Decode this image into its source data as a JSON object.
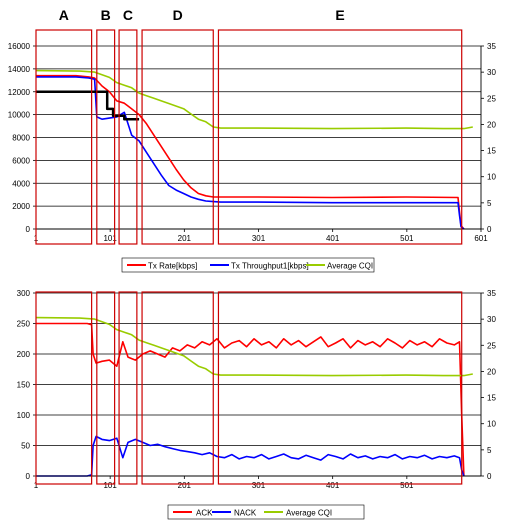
{
  "region_labels": [
    "A",
    "B",
    "C",
    "D",
    "E"
  ],
  "colors": {
    "red": "#ff0000",
    "blue": "#0000ff",
    "green": "#99cc00",
    "black": "#000000",
    "box": "#cc0000",
    "grid": "#000000"
  },
  "regions": [
    {
      "label": "A",
      "x": [
        1,
        76
      ]
    },
    {
      "label": "B",
      "x": [
        83,
        107
      ]
    },
    {
      "label": "C",
      "x": [
        113,
        137
      ]
    },
    {
      "label": "D",
      "x": [
        144,
        240
      ]
    },
    {
      "label": "E",
      "x": [
        247,
        575
      ]
    }
  ],
  "chart_data": [
    {
      "type": "line",
      "x_ticks": [
        "1",
        "101",
        "201",
        "301",
        "401",
        "501",
        "601"
      ],
      "xlim": [
        1,
        601
      ],
      "ylim_left": [
        0,
        16000
      ],
      "y_ticks_left": [
        "0",
        "2000",
        "4000",
        "6000",
        "8000",
        "10000",
        "12000",
        "14000",
        "16000"
      ],
      "ylim_right": [
        0,
        35
      ],
      "y_ticks_right": [
        "0",
        "5",
        "10",
        "15",
        "20",
        "25",
        "30",
        "35"
      ],
      "grid": true,
      "legend_position": "bottom",
      "legend": [
        "Tx Rate[kbps]",
        "Tx Throughput1[kbps]",
        "Average CQI"
      ],
      "series": [
        {
          "name": "Tx Rate[kbps]",
          "axis": "left",
          "color": "red",
          "x": [
            1,
            55,
            72,
            80,
            90,
            100,
            110,
            120,
            130,
            140,
            150,
            160,
            170,
            180,
            190,
            200,
            210,
            220,
            230,
            240,
            250,
            300,
            400,
            500,
            570,
            572,
            574,
            578
          ],
          "y": [
            13400,
            13400,
            13300,
            13200,
            12500,
            12000,
            11200,
            11000,
            10500,
            10000,
            9200,
            8200,
            7200,
            6200,
            5200,
            4300,
            3600,
            3100,
            2900,
            2800,
            2800,
            2800,
            2750,
            2800,
            2750,
            1500,
            300,
            0
          ]
        },
        {
          "name": "Tx Throughput1[kbps]",
          "axis": "left",
          "color": "blue",
          "x": [
            1,
            55,
            72,
            80,
            83,
            90,
            100,
            110,
            120,
            130,
            140,
            150,
            160,
            170,
            180,
            190,
            200,
            210,
            220,
            230,
            240,
            250,
            300,
            400,
            500,
            570,
            572,
            574,
            578
          ],
          "y": [
            13300,
            13300,
            13200,
            13100,
            9800,
            9600,
            9700,
            9800,
            10200,
            8200,
            7700,
            6700,
            5700,
            4700,
            3800,
            3400,
            3100,
            2800,
            2600,
            2450,
            2400,
            2350,
            2350,
            2300,
            2300,
            2300,
            1200,
            200,
            0
          ]
        },
        {
          "name": "Average CQI",
          "axis": "right",
          "color": "green",
          "x": [
            1,
            60,
            80,
            100,
            110,
            120,
            130,
            140,
            150,
            160,
            170,
            180,
            190,
            200,
            210,
            220,
            230,
            240,
            250,
            300,
            400,
            500,
            550,
            578,
            590
          ],
          "y": [
            30.3,
            30.2,
            30,
            29,
            28,
            27.5,
            27,
            26,
            25.5,
            25,
            24.5,
            24,
            23.5,
            23,
            22,
            21,
            20.5,
            19.5,
            19.3,
            19.3,
            19.2,
            19.3,
            19.2,
            19.2,
            19.5
          ]
        },
        {
          "name": "",
          "axis": "left",
          "color": "black",
          "x": [
            1,
            97,
            97,
            105,
            105,
            120,
            120,
            140
          ],
          "y": [
            12000,
            12000,
            10500,
            10500,
            9900,
            9900,
            9600,
            9600
          ]
        }
      ]
    },
    {
      "type": "line",
      "x_ticks": [
        "1",
        "101",
        "201",
        "301",
        "401",
        "501"
      ],
      "xlim": [
        1,
        601
      ],
      "ylim_left": [
        0,
        300
      ],
      "y_ticks_left": [
        "0",
        "50",
        "100",
        "150",
        "200",
        "250",
        "300"
      ],
      "ylim_right": [
        0,
        35
      ],
      "y_ticks_right": [
        "0",
        "5",
        "10",
        "15",
        "20",
        "25",
        "30",
        "35"
      ],
      "grid": true,
      "legend_position": "bottom",
      "legend": [
        "ACK",
        "NACK",
        "Average CQI"
      ],
      "series": [
        {
          "name": "ACK",
          "axis": "left",
          "color": "red",
          "x": [
            1,
            70,
            76,
            78,
            82,
            90,
            100,
            110,
            118,
            125,
            135,
            145,
            155,
            165,
            175,
            185,
            195,
            205,
            215,
            225,
            235,
            245,
            255,
            265,
            275,
            285,
            295,
            305,
            315,
            325,
            335,
            345,
            355,
            365,
            375,
            385,
            395,
            405,
            415,
            425,
            435,
            445,
            455,
            465,
            475,
            485,
            495,
            505,
            515,
            525,
            535,
            545,
            555,
            565,
            572,
            575,
            578
          ],
          "y": [
            250,
            250,
            248,
            200,
            185,
            188,
            190,
            180,
            220,
            195,
            190,
            200,
            205,
            200,
            195,
            210,
            205,
            215,
            210,
            220,
            215,
            225,
            210,
            218,
            222,
            212,
            225,
            215,
            220,
            210,
            225,
            215,
            222,
            212,
            220,
            228,
            212,
            218,
            225,
            210,
            222,
            215,
            220,
            212,
            225,
            218,
            210,
            222,
            215,
            220,
            212,
            225,
            218,
            215,
            220,
            100,
            0
          ]
        },
        {
          "name": "NACK",
          "axis": "left",
          "color": "blue",
          "x": [
            1,
            70,
            76,
            78,
            82,
            90,
            100,
            110,
            118,
            125,
            135,
            145,
            155,
            165,
            175,
            185,
            195,
            205,
            215,
            225,
            235,
            245,
            255,
            265,
            275,
            285,
            295,
            305,
            315,
            325,
            335,
            345,
            355,
            365,
            375,
            385,
            395,
            405,
            415,
            425,
            435,
            445,
            455,
            465,
            475,
            485,
            495,
            505,
            515,
            525,
            535,
            545,
            555,
            565,
            572,
            575,
            578
          ],
          "y": [
            0,
            0,
            2,
            50,
            65,
            60,
            58,
            62,
            30,
            55,
            60,
            55,
            50,
            52,
            48,
            45,
            42,
            40,
            38,
            35,
            38,
            32,
            30,
            35,
            28,
            32,
            30,
            35,
            28,
            32,
            36,
            30,
            28,
            34,
            30,
            26,
            35,
            32,
            28,
            36,
            30,
            33,
            28,
            32,
            30,
            35,
            28,
            32,
            30,
            34,
            28,
            32,
            30,
            33,
            30,
            10,
            0
          ]
        },
        {
          "name": "Average CQI",
          "axis": "right",
          "color": "green",
          "x": [
            1,
            60,
            80,
            100,
            110,
            120,
            130,
            140,
            150,
            160,
            170,
            180,
            190,
            200,
            210,
            220,
            230,
            240,
            250,
            300,
            400,
            500,
            550,
            578,
            590
          ],
          "y": [
            30.3,
            30.2,
            30,
            29,
            28,
            27.5,
            27,
            26,
            25.5,
            25,
            24.5,
            24,
            23.5,
            23,
            22,
            21,
            20.5,
            19.5,
            19.3,
            19.3,
            19.2,
            19.3,
            19.2,
            19.2,
            19.5
          ]
        }
      ]
    }
  ]
}
